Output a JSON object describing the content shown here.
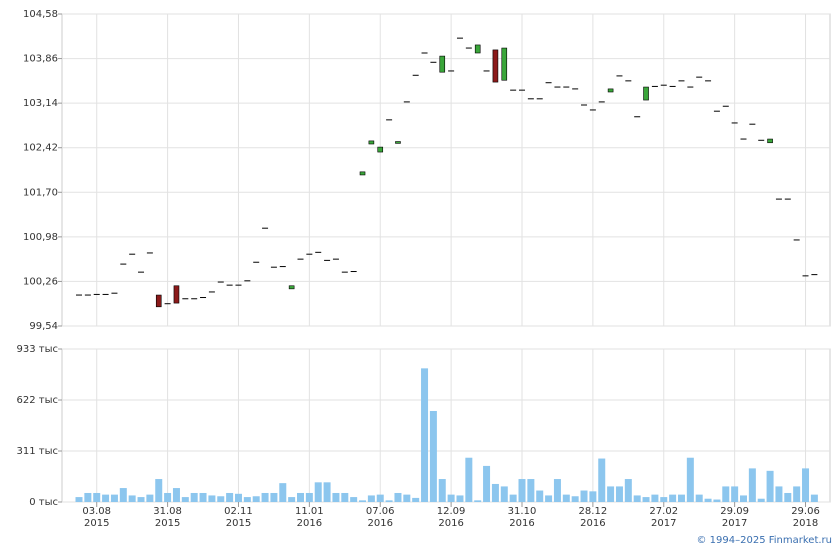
{
  "chart_data": [
    {
      "type": "candlestick",
      "open": [
        100.04,
        100.04,
        100.05,
        100.05,
        100.07,
        100.54,
        100.7,
        100.41,
        100.72,
        100.04,
        99.9,
        100.19,
        99.98,
        99.98,
        100.0,
        100.09,
        100.25,
        100.2,
        100.2,
        100.27,
        100.57,
        101.12,
        100.49,
        100.5,
        100.14,
        100.62,
        100.7,
        100.73,
        100.6,
        100.62,
        100.41,
        100.42,
        101.98,
        102.48,
        102.35,
        102.87,
        102.49,
        103.16,
        103.59,
        103.95,
        103.8,
        103.64,
        103.66,
        104.19,
        104.03,
        103.95,
        103.66,
        104.0,
        103.51,
        103.35,
        103.35,
        103.21,
        103.21,
        103.47,
        103.4,
        103.4,
        103.37,
        103.11,
        103.03,
        103.16,
        103.32,
        103.58,
        103.5,
        102.92,
        103.19,
        103.41,
        103.43,
        103.41,
        103.5,
        103.4,
        103.56,
        103.5,
        103.01,
        103.09,
        102.82,
        102.56,
        102.8,
        102.54,
        102.5,
        101.59,
        101.59,
        100.93,
        100.35,
        100.37
      ],
      "close": [
        100.04,
        100.04,
        100.05,
        100.05,
        100.07,
        100.54,
        100.7,
        100.41,
        100.72,
        99.85,
        99.9,
        99.91,
        99.98,
        99.98,
        100.0,
        100.09,
        100.25,
        100.2,
        100.2,
        100.27,
        100.57,
        101.12,
        100.49,
        100.5,
        100.19,
        100.62,
        100.7,
        100.73,
        100.6,
        100.62,
        100.41,
        100.42,
        102.03,
        102.53,
        102.43,
        102.87,
        102.52,
        103.16,
        103.59,
        103.95,
        103.8,
        103.9,
        103.66,
        104.19,
        104.03,
        104.08,
        103.66,
        103.48,
        104.03,
        103.35,
        103.35,
        103.21,
        103.21,
        103.47,
        103.4,
        103.4,
        103.37,
        103.11,
        103.03,
        103.16,
        103.37,
        103.58,
        103.5,
        102.92,
        103.4,
        103.41,
        103.43,
        103.41,
        103.5,
        103.4,
        103.56,
        103.5,
        103.01,
        103.09,
        102.82,
        102.56,
        102.8,
        102.54,
        102.56,
        101.59,
        101.59,
        100.93,
        100.35,
        100.37
      ],
      "up_color": "#3aa63a",
      "down_color": "#8b1a1a",
      "flat_color": "#000000",
      "ylim": [
        99.54,
        104.58
      ],
      "yticks": [
        {
          "value": 99.54,
          "label": "99,54"
        },
        {
          "value": 100.26,
          "label": "100,26"
        },
        {
          "value": 100.98,
          "label": "100,98"
        },
        {
          "value": 101.7,
          "label": "101,70"
        },
        {
          "value": 102.42,
          "label": "102,42"
        },
        {
          "value": 103.14,
          "label": "103,14"
        },
        {
          "value": 103.86,
          "label": "103,86"
        },
        {
          "value": 104.58,
          "label": "104,58"
        }
      ],
      "grid": true
    },
    {
      "type": "bar",
      "categories": [
        null,
        null,
        "03.08\n2015",
        null,
        null,
        null,
        null,
        null,
        null,
        null,
        "31.08\n2015",
        null,
        null,
        null,
        null,
        null,
        null,
        null,
        "02.11\n2015",
        null,
        null,
        null,
        null,
        null,
        null,
        null,
        "11.01\n2016",
        null,
        null,
        null,
        null,
        null,
        null,
        null,
        "07.06\n2016",
        null,
        null,
        null,
        null,
        null,
        null,
        null,
        "12.09\n2016",
        null,
        null,
        null,
        null,
        null,
        null,
        null,
        "31.10\n2016",
        null,
        null,
        null,
        null,
        null,
        null,
        null,
        "28.12\n2016",
        null,
        null,
        null,
        null,
        null,
        null,
        null,
        "27.02\n2017",
        null,
        null,
        null,
        null,
        null,
        null,
        null,
        "29.09\n2017",
        null,
        null,
        null,
        null,
        null,
        null,
        null,
        "29.06\n2018",
        null
      ],
      "values": [
        30,
        55,
        55,
        45,
        45,
        85,
        40,
        30,
        45,
        140,
        55,
        85,
        30,
        55,
        55,
        40,
        35,
        55,
        50,
        30,
        35,
        55,
        55,
        115,
        30,
        55,
        55,
        120,
        120,
        55,
        55,
        30,
        10,
        40,
        45,
        10,
        55,
        45,
        25,
        815,
        555,
        140,
        45,
        40,
        270,
        10,
        220,
        110,
        95,
        45,
        140,
        140,
        70,
        40,
        140,
        45,
        35,
        70,
        65,
        265,
        95,
        95,
        140,
        40,
        30,
        45,
        30,
        45,
        45,
        270,
        45,
        20,
        15,
        95,
        95,
        40,
        205,
        20,
        190,
        95,
        55,
        95,
        205,
        45
      ],
      "color": "#8cc6ee",
      "ylim": [
        0,
        933
      ],
      "yticks": [
        {
          "value": 0,
          "label": "0 тыс"
        },
        {
          "value": 311,
          "label": "311 тыс"
        },
        {
          "value": 622,
          "label": "622 тыс"
        },
        {
          "value": 933,
          "label": "933 тыс"
        }
      ],
      "grid": true
    }
  ],
  "footer": "© 1994–2025 Finmarket.ru"
}
